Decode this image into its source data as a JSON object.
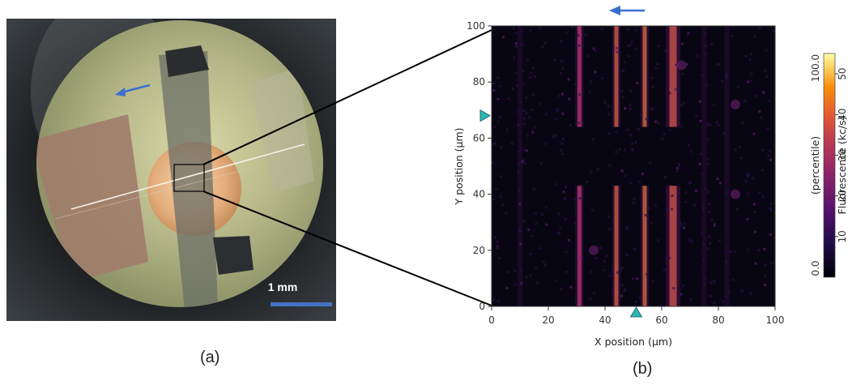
{
  "panel_a": {
    "caption": "(a)",
    "scale_bar_label": "1 mm",
    "arrow_color": "#3a6fd0",
    "scale_bar_color": "#4472c4"
  },
  "panel_b": {
    "caption": "(b)"
  },
  "chart_data": {
    "type": "heatmap",
    "xlabel": "X position (µm)",
    "ylabel": "Y position (µm)",
    "xlim": [
      0,
      100
    ],
    "ylim": [
      0,
      100
    ],
    "x_ticks": [
      0,
      20,
      40,
      60,
      80,
      100
    ],
    "y_ticks": [
      0,
      20,
      40,
      60,
      80,
      100
    ],
    "colorbar": {
      "label": "Fluorescence (kc/s)",
      "secondary_label": "(percentile)",
      "ticks": [
        10,
        20,
        30,
        40,
        50
      ],
      "range": [
        0,
        55
      ],
      "percentile_min": "0.0",
      "percentile_max": "100.0",
      "colormap": "inferno"
    },
    "vertical_lines_x_um": [
      31,
      44,
      54,
      64
    ],
    "gap_y_range_um": [
      43,
      64
    ],
    "markers": [
      {
        "axis": "y",
        "value": 68,
        "color": "#2ab7b5"
      },
      {
        "axis": "x",
        "value": 51,
        "color": "#2ab7b5"
      }
    ],
    "scan_direction_arrow_color": "#3a6fd0"
  }
}
